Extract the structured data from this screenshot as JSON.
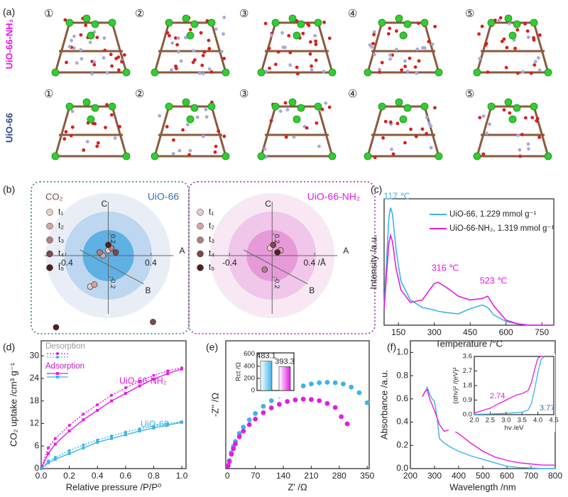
{
  "figure": {
    "panel_labels": [
      "(a)",
      "(b)",
      "(c)",
      "(d)",
      "(e)",
      "(f)"
    ],
    "structures": {
      "rows": [
        "UiO-66-NH₂",
        "UiO-66"
      ],
      "steps": [
        "①",
        "②",
        "③",
        "④",
        "⑤"
      ]
    }
  },
  "chart_data": [
    {
      "type": "scatter",
      "title": "UiO-66",
      "title_color": "#3a6fb0",
      "legend_title": "CO₂",
      "axis_names": [
        "A",
        "B",
        "C"
      ],
      "xlim": [
        -0.67,
        0.73
      ],
      "ylim": [
        -0.73,
        0.65
      ],
      "xticks": [
        -0.4,
        0.4
      ],
      "yticks": [
        0.2,
        -0.2
      ],
      "series": [
        {
          "name": "t₁",
          "color": "#e6cccc",
          "x": [
            0.0,
            -0.17
          ],
          "values": [
            0.05,
            -0.29
          ]
        },
        {
          "name": "t₂",
          "color": "#cfa9a9",
          "x": [
            -0.05,
            -0.13
          ],
          "values": [
            0.0,
            -0.27
          ]
        },
        {
          "name": "t₃",
          "color": "#ad8181",
          "x": [
            0.03,
            -0.08
          ],
          "values": [
            0.07,
            0.03
          ]
        },
        {
          "name": "t₄",
          "color": "#7a4b4b",
          "x": [
            0.07,
            0.42
          ],
          "values": [
            0.03,
            -0.62
          ]
        },
        {
          "name": "t₅",
          "color": "#4a2222",
          "x": [
            0.0,
            -0.49
          ],
          "values": [
            0.1,
            -0.67
          ]
        }
      ]
    },
    {
      "type": "scatter",
      "title": "UiO-66-NH₂",
      "title_color": "#e619e6",
      "axis_names": [
        "A",
        "B",
        "C"
      ],
      "xlim": [
        -0.77,
        0.98
      ],
      "ylim": [
        -0.73,
        0.65
      ],
      "xticks": [
        -0.4,
        {
          "value": 0.4,
          "label": "0.4 /Å"
        }
      ],
      "yticks": [
        0.2,
        -0.2
      ],
      "series": [
        {
          "name": "t₁",
          "color": "#e6cccc",
          "x": [
            -0.02
          ],
          "values": [
            0.07
          ]
        },
        {
          "name": "t₂",
          "color": "#cfa9a9",
          "x": [
            0.08
          ],
          "values": [
            0.05
          ]
        },
        {
          "name": "t₃",
          "color": "#ad8181",
          "x": [
            -0.07
          ],
          "values": [
            -0.13
          ]
        },
        {
          "name": "t₄",
          "color": "#7a4b4b",
          "x": [
            0.01
          ],
          "values": [
            0.1
          ]
        },
        {
          "name": "t₅",
          "color": "#4a2222",
          "x": [
            0.05
          ],
          "values": [
            0.03
          ]
        }
      ]
    },
    {
      "type": "line",
      "xlabel": "Temperature /°C",
      "ylabel": "Intensity /a.u.",
      "xlim": [
        90,
        800
      ],
      "ylim": [
        0,
        1
      ],
      "xticks": [
        150,
        300,
        450,
        600,
        750
      ],
      "x": [
        90,
        100,
        110,
        117,
        125,
        140,
        160,
        200,
        250,
        300,
        316,
        350,
        400,
        450,
        500,
        523,
        550,
        600,
        650,
        700,
        750,
        800
      ],
      "series": [
        {
          "name": "UiO-66, 1.229 mmol g⁻¹",
          "color": "#3cb4e8",
          "values": [
            0.15,
            0.5,
            0.85,
            0.93,
            0.88,
            0.6,
            0.35,
            0.2,
            0.14,
            0.12,
            0.11,
            0.1,
            0.09,
            0.13,
            0.16,
            0.14,
            0.08,
            0.03,
            0.01,
            0,
            0,
            0
          ]
        },
        {
          "name": "UiO-66-NH₂, 1.319 mmol g⁻¹",
          "color": "#e619e6",
          "values": [
            0.12,
            0.4,
            0.65,
            0.71,
            0.66,
            0.45,
            0.28,
            0.18,
            0.2,
            0.33,
            0.34,
            0.3,
            0.23,
            0.2,
            0.21,
            0.23,
            0.15,
            0.04,
            0.01,
            0,
            0,
            0
          ]
        }
      ],
      "annotations": [
        {
          "text": "117 ℃",
          "color": "#3cb4e8"
        },
        {
          "text": "316 ℃",
          "color": "#e619e6"
        },
        {
          "text": "523 ℃",
          "color": "#e619e6"
        }
      ]
    },
    {
      "type": "line",
      "xlabel": "Relative pressure /P/P⁰",
      "ylabel": "CO₂ uptake /cm³ g⁻¹",
      "xlim": [
        0,
        1.03
      ],
      "ylim": [
        0,
        34
      ],
      "xticks": [
        {
          "value": 0,
          "label": "0.0"
        },
        {
          "value": 0.2,
          "label": "0.2"
        },
        {
          "value": 0.4,
          "label": "0.4"
        },
        {
          "value": 0.6,
          "label": "0.6"
        },
        {
          "value": 0.8,
          "label": "0.8"
        },
        {
          "value": 1,
          "label": "1.0"
        }
      ],
      "yticks": [
        0,
        6,
        12,
        18,
        24,
        30
      ],
      "legend": [
        "Desorption",
        "Adsorption"
      ],
      "x": [
        0,
        0.05,
        0.1,
        0.2,
        0.3,
        0.4,
        0.5,
        0.6,
        0.7,
        0.8,
        0.9,
        1.0
      ],
      "series": [
        {
          "name": "UiO-66-NH₂",
          "color": "#e619e6",
          "adsorption": [
            0,
            4,
            6.5,
            10,
            13,
            15.5,
            18,
            20,
            22,
            23.8,
            25.3,
            26.5
          ],
          "desorption": [
            0,
            5.5,
            8,
            11.5,
            14.5,
            17,
            19.5,
            21.5,
            23.2,
            24.8,
            26,
            26.8
          ]
        },
        {
          "name": "UiO-66",
          "color": "#3cb4e8",
          "adsorption": [
            0,
            1.5,
            2.5,
            4,
            5.5,
            7,
            8,
            9,
            10,
            10.8,
            11.6,
            12.3
          ],
          "desorption": [
            0,
            2,
            3,
            4.8,
            6.3,
            7.6,
            8.7,
            9.7,
            10.6,
            11.3,
            12,
            12.5
          ]
        }
      ]
    },
    {
      "type": "scatter",
      "xlabel": "Z' /Ω",
      "ylabel": "-Z'' /Ω",
      "xlim": [
        -4,
        355
      ],
      "ylim": [
        0,
        320
      ],
      "xticks": [
        0,
        70,
        140,
        210,
        280,
        350
      ],
      "series": [
        {
          "color": "#3cb4e8",
          "x": [
            2,
            5,
            10,
            15,
            20,
            30,
            40,
            55,
            70,
            90,
            110,
            130,
            150,
            170,
            190,
            210,
            230,
            250,
            270,
            290,
            310,
            330,
            350
          ],
          "values": [
            8,
            20,
            40,
            55,
            68,
            88,
            104,
            122,
            138,
            156,
            170,
            182,
            192,
            200,
            207,
            212,
            215,
            216,
            215,
            212,
            204,
            190,
            165
          ]
        },
        {
          "color": "#e619e6",
          "x": [
            2,
            5,
            10,
            15,
            20,
            30,
            40,
            55,
            70,
            90,
            110,
            130,
            150,
            170,
            190,
            210,
            230,
            250,
            270,
            285,
            300
          ],
          "values": [
            7,
            18,
            36,
            50,
            62,
            80,
            94,
            110,
            124,
            140,
            152,
            161,
            168,
            172,
            174,
            173,
            170,
            163,
            153,
            130,
            112
          ]
        }
      ]
    },
    {
      "type": "bar",
      "ylabel": "Rct /Ω",
      "ylim": [
        0,
        620
      ],
      "yticks": [
        0,
        200,
        400,
        600
      ],
      "categories": [
        null,
        null
      ],
      "values": [
        483.1,
        393.3
      ],
      "colors": [
        "#3cb4e8",
        "#e619e6"
      ]
    },
    {
      "type": "line",
      "xlabel": "Wavelength /nm",
      "ylabel": "Absorbance /a.u.",
      "xlim": [
        200,
        800
      ],
      "ylim": [
        0,
        1.1
      ],
      "xticks": [
        200,
        300,
        400,
        500,
        600,
        700,
        800
      ],
      "yticks": [
        {
          "value": 0,
          "label": "0.0"
        },
        {
          "value": 0.2,
          "label": "0.2"
        },
        {
          "value": 0.4,
          "label": "0.4"
        },
        {
          "value": 0.6,
          "label": "0.6"
        },
        {
          "value": 0.8,
          "label": "0.8"
        },
        {
          "value": 1,
          "label": "1.0"
        }
      ],
      "x": [
        250,
        260,
        270,
        280,
        290,
        300,
        310,
        320,
        340,
        370,
        400,
        450,
        500,
        550,
        600,
        650,
        700,
        750,
        800
      ],
      "series": [
        {
          "color": "#3cb4e8",
          "values": [
            0.62,
            0.66,
            0.7,
            0.64,
            0.6,
            0.58,
            0.45,
            0.26,
            0.22,
            0.18,
            0.15,
            0.11,
            0.08,
            0.05,
            0.02,
            0.01,
            0.005,
            0,
            0
          ]
        },
        {
          "color": "#e619e6",
          "values": [
            0.62,
            0.66,
            0.68,
            0.6,
            0.55,
            0.5,
            0.44,
            0.38,
            0.32,
            0.34,
            0.3,
            0.22,
            0.15,
            0.1,
            0.07,
            0.05,
            0.04,
            0.03,
            0.03
          ]
        }
      ]
    },
    {
      "type": "line",
      "xlabel": "hν /eV",
      "ylabel": "(αhν)² /(eV)²",
      "xlim": [
        2,
        4.5
      ],
      "ylim": [
        0,
        3.6
      ],
      "xticks": [
        {
          "value": 2,
          "label": "2.0"
        },
        {
          "value": 2.5,
          "label": "2.5"
        },
        {
          "value": 3,
          "label": "3.0"
        },
        {
          "value": 3.5,
          "label": "3.5"
        },
        {
          "value": 4,
          "label": "4.0"
        },
        {
          "value": 4.5,
          "label": "4.5"
        }
      ],
      "yticks": [
        {
          "value": 0,
          "label": "0.0"
        },
        0.9,
        1.8,
        2.7,
        3.6
      ],
      "x": [
        2.0,
        2.5,
        2.74,
        3.0,
        3.3,
        3.5,
        3.7,
        3.8,
        3.9,
        4.0,
        4.1,
        4.2
      ],
      "series": [
        {
          "color": "#3cb4e8",
          "values": [
            0.02,
            0.04,
            0.06,
            0.08,
            0.12,
            0.15,
            0.3,
            0.7,
            1.6,
            2.6,
            3.4,
            3.6
          ]
        },
        {
          "color": "#e619e6",
          "values": [
            0.1,
            0.4,
            0.65,
            0.9,
            1.2,
            1.3,
            1.5,
            2.0,
            2.8,
            3.5,
            3.6,
            3.6
          ]
        }
      ],
      "annotations": [
        {
          "text": "2.74",
          "color": "#e619e6"
        },
        {
          "text": "3.77",
          "color": "#3a6fb0"
        }
      ]
    }
  ]
}
